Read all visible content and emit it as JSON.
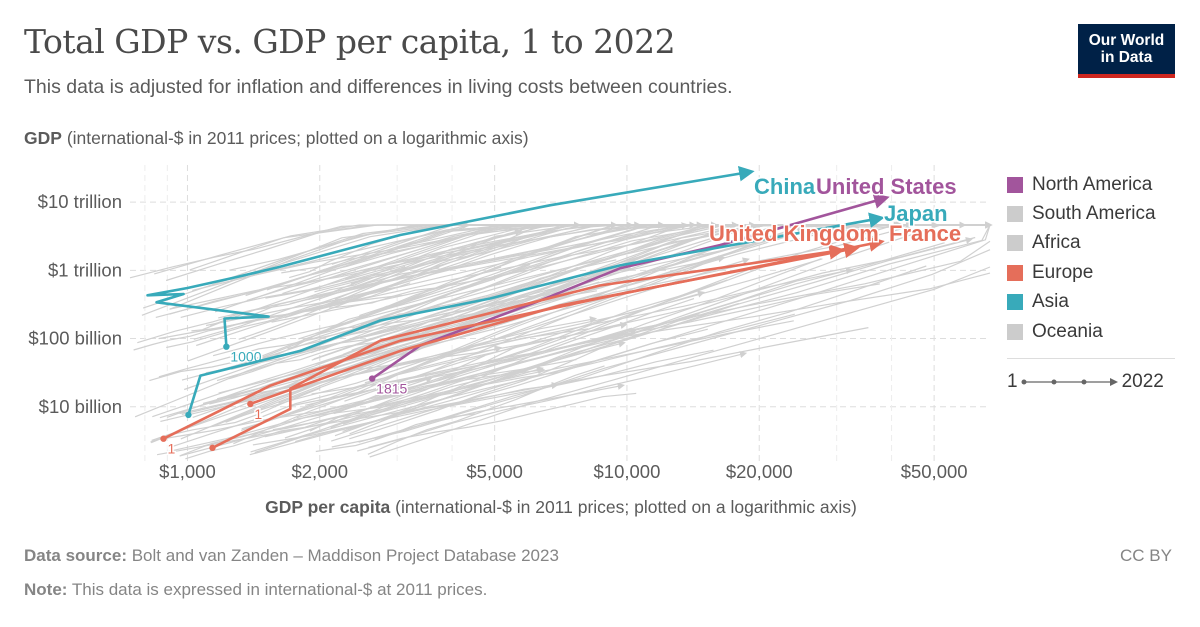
{
  "header": {
    "title": "Total GDP vs. GDP per capita, 1 to 2022",
    "subtitle": "This data is adjusted for inflation and differences in living costs between countries.",
    "logo": "Our World in Data"
  },
  "footer": {
    "source_label": "Data source:",
    "source": "Bolt and van Zanden – Maddison Project Database 2023",
    "note_label": "Note:",
    "note": "This data is expressed in international-$ at 2011 prices.",
    "license": "CC BY"
  },
  "legend": {
    "items": [
      {
        "label": "North America",
        "color": "#a2559c"
      },
      {
        "label": "South America",
        "color": "#cccccc"
      },
      {
        "label": "Africa",
        "color": "#cccccc"
      },
      {
        "label": "Europe",
        "color": "#e56e5a"
      },
      {
        "label": "Asia",
        "color": "#38aaba"
      },
      {
        "label": "Oceania",
        "color": "#cccccc"
      }
    ],
    "timeline_start": "1",
    "timeline_end": "2022"
  },
  "chart_data": {
    "type": "scatter",
    "connected": true,
    "xlabel_bold": "GDP per capita",
    "xlabel": "(international-$ in 2011 prices; plotted on a logarithmic axis)",
    "ylabel_bold": "GDP",
    "ylabel": "(international-$ in 2011 prices; plotted on a logarithmic axis)",
    "x_scale": "log",
    "y_scale": "log",
    "xlim": [
      740,
      67000
    ],
    "ylim": [
      1550000000.0,
      35000000000000.0
    ],
    "x_ticks": [
      {
        "v": 1000,
        "label": "$1,000"
      },
      {
        "v": 2000,
        "label": "$2,000"
      },
      {
        "v": 5000,
        "label": "$5,000"
      },
      {
        "v": 10000,
        "label": "$10,000"
      },
      {
        "v": 20000,
        "label": "$20,000"
      },
      {
        "v": 50000,
        "label": "$50,000"
      }
    ],
    "y_ticks": [
      {
        "v": 10000000000000.0,
        "label": "$10 trillion"
      },
      {
        "v": 1000000000000.0,
        "label": "$1 trillion"
      },
      {
        "v": 100000000000.0,
        "label": "$100 billion"
      },
      {
        "v": 10000000000.0,
        "label": "$10 billion"
      }
    ],
    "grid": true,
    "legend_position": "right",
    "series": [
      {
        "name": "China",
        "region": "Asia",
        "color": "#38aaba",
        "start_label": "1000",
        "points": [
          [
            1226,
            76000000000.0
          ],
          [
            1214,
            197000000000.0
          ],
          [
            1530,
            210000000000.0
          ],
          [
            850,
            340000000000.0
          ],
          [
            980,
            450000000000.0
          ],
          [
            811,
            430000000000.0
          ],
          [
            1000,
            550000000000.0
          ],
          [
            1300,
            800000000000.0
          ],
          [
            1600,
            1100000000000.0
          ],
          [
            3050,
            3300000000000.0
          ],
          [
            6700,
            9000000000000.0
          ],
          [
            19000,
            27600000000000.0
          ]
        ]
      },
      {
        "name": "United States",
        "region": "North America",
        "color": "#a2559c",
        "start_label": "1815",
        "points": [
          [
            2632,
            25900000000.0
          ],
          [
            3385,
            79000000000.0
          ],
          [
            6345,
            360000000000.0
          ],
          [
            9640,
            1070000000000.0
          ],
          [
            16270,
            2340000000000.0
          ],
          [
            38600,
            11400000000000.0
          ]
        ]
      },
      {
        "name": "Japan",
        "region": "Asia",
        "color": "#38aaba",
        "start_label": "",
        "points": [
          [
            1005,
            7600000000.0
          ],
          [
            1070,
            28600000000.0
          ],
          [
            1807,
            66000000000.0
          ],
          [
            2746,
            184000000000.0
          ],
          [
            4884,
            387000000000.0
          ],
          [
            9640,
            1180000000000.0
          ],
          [
            37600,
            5800000000000.0
          ]
        ]
      },
      {
        "name": "United Kingdom",
        "region": "Europe",
        "color": "#e56e5a",
        "start_label": "1",
        "points": [
          [
            1390,
            11000000000.0
          ],
          [
            3050,
            66000000000.0
          ],
          [
            7040,
            305000000000.0
          ],
          [
            33000,
            2100000000000.0
          ]
        ]
      },
      {
        "name": "France",
        "region": "Europe",
        "color": "#e56e5a",
        "start_label": "1",
        "points": [
          [
            882,
            3400000000.0
          ],
          [
            1544,
            20400000000.0
          ],
          [
            3050,
            93000000000.0
          ],
          [
            8680,
            390000000000.0
          ],
          [
            37600,
            2600000000000.0
          ]
        ]
      },
      {
        "region": "Europe",
        "color": "#e56e5a",
        "start_label": "",
        "points": [
          [
            1140,
            2500000000.0
          ],
          [
            1714,
            9300000000.0
          ],
          [
            1714,
            18400000000.0
          ],
          [
            2746,
            93000000000.0
          ],
          [
            8680,
            600000000000.0
          ],
          [
            30500,
            1960000000000.0
          ]
        ]
      }
    ],
    "labels": [
      {
        "text": "China",
        "color": "#38aaba"
      },
      {
        "text": "United States",
        "color": "#a2559c"
      },
      {
        "text": "Japan",
        "color": "#38aaba"
      },
      {
        "text": "United Kingdom",
        "color": "#e56e5a"
      },
      {
        "text": "France",
        "color": "#e56e5a"
      }
    ]
  }
}
